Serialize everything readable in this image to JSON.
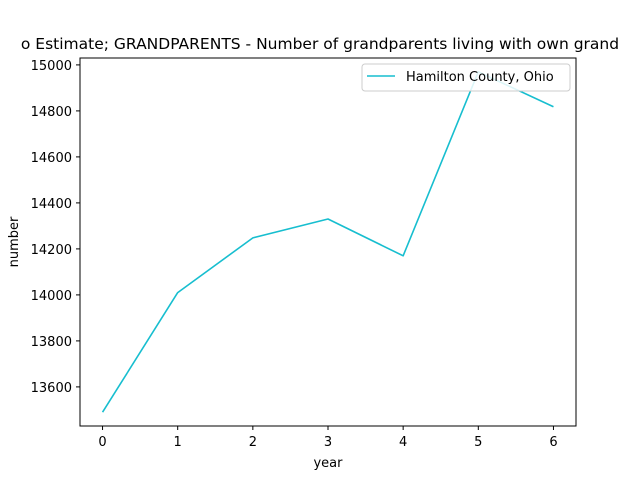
{
  "chart_data": {
    "type": "line",
    "title": "o Estimate; GRANDPARENTS - Number of grandparents living with own grand",
    "xlabel": "year",
    "ylabel": "number",
    "x": [
      0,
      1,
      2,
      3,
      4,
      5,
      6
    ],
    "xlim": [
      -0.3,
      6.3
    ],
    "ylim": [
      13430,
      15030
    ],
    "xticks": [
      "0",
      "1",
      "2",
      "3",
      "4",
      "5",
      "6"
    ],
    "yticks": [
      13600,
      13800,
      14000,
      14200,
      14400,
      14600,
      14800,
      15000
    ],
    "grid": false,
    "legend_position": "upper right",
    "series": [
      {
        "name": "Hamilton County, Ohio",
        "color": "#17becf",
        "values": [
          13490,
          14010,
          14248,
          14330,
          14170,
          14970,
          14818
        ]
      }
    ]
  }
}
